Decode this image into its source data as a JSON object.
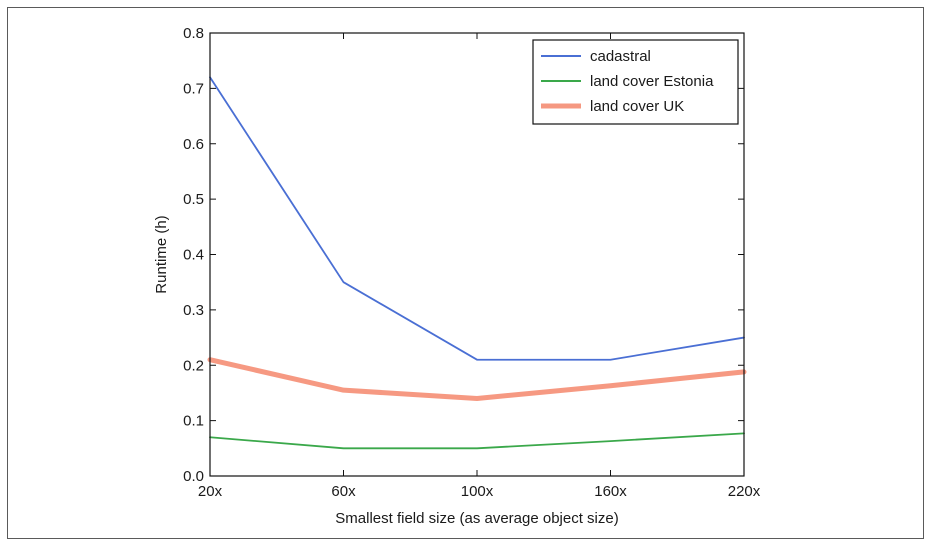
{
  "chart_data": {
    "type": "line",
    "title": "",
    "xlabel": "Smallest field size (as average object size)",
    "ylabel": "Runtime (h)",
    "categories": [
      "20x",
      "60x",
      "100x",
      "160x",
      "220x"
    ],
    "ylim": [
      0.0,
      0.8
    ],
    "yticks": [
      "0.0",
      "0.1",
      "0.2",
      "0.3",
      "0.4",
      "0.5",
      "0.6",
      "0.7",
      "0.8"
    ],
    "grid": false,
    "legend_position": "top-right",
    "series": [
      {
        "name": "cadastral",
        "color": "#4a6fd4",
        "values": [
          0.72,
          0.35,
          0.21,
          0.21,
          0.25
        ]
      },
      {
        "name": "land cover Estonia",
        "color": "#3aa84a",
        "values": [
          0.07,
          0.05,
          0.05,
          0.063,
          0.077
        ]
      },
      {
        "name": "land cover UK",
        "color": "#f4876c",
        "values": [
          0.21,
          0.155,
          0.14,
          0.163,
          0.188
        ]
      }
    ]
  }
}
